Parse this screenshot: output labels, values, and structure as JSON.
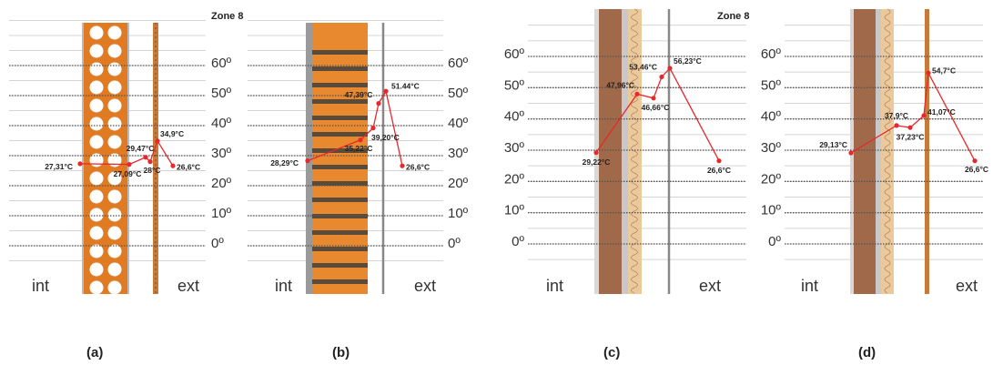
{
  "chart_data": [
    {
      "type": "line",
      "title": "Zone 8",
      "caption": "(a)",
      "inside_label": "int",
      "outside_label": "ext",
      "ylim": [
        0,
        60
      ],
      "yticks": [
        {
          "value": 0,
          "label": "0º"
        },
        {
          "value": 10,
          "label": "10º"
        },
        {
          "value": 20,
          "label": "20º"
        },
        {
          "value": 30,
          "label": "30º"
        },
        {
          "value": 40,
          "label": "40º"
        },
        {
          "value": 50,
          "label": "50º"
        },
        {
          "value": 60,
          "label": "60º"
        }
      ],
      "categories": [
        null,
        null,
        null,
        null,
        null,
        null
      ],
      "color": "#e8282b",
      "values": [
        27.31,
        27.09,
        29.47,
        28,
        34.9,
        26.6
      ],
      "value_labels": [
        "27,31°C",
        "27,09°C",
        "29,47°C",
        "28°C",
        "34,9°C",
        "26,6°C"
      ]
    },
    {
      "type": "line",
      "caption": "(b)",
      "inside_label": "int",
      "outside_label": "ext",
      "ylim": [
        0,
        60
      ],
      "yticks": [
        {
          "value": 0,
          "label": "0º"
        },
        {
          "value": 10,
          "label": "10º"
        },
        {
          "value": 20,
          "label": "20º"
        },
        {
          "value": 30,
          "label": "30º"
        },
        {
          "value": 40,
          "label": "40º"
        },
        {
          "value": 50,
          "label": "50º"
        },
        {
          "value": 60,
          "label": "60º"
        }
      ],
      "categories": [
        null,
        null,
        null,
        null,
        null,
        null
      ],
      "color": "#e8282b",
      "values": [
        28.29,
        35.22,
        39.2,
        47.39,
        51.44,
        26.6
      ],
      "value_labels": [
        "28,29°C",
        "35,22°C",
        "39,20°C",
        "47,39°C",
        "51.44°C",
        "26,6°C"
      ]
    },
    {
      "type": "line",
      "title": "Zone 8",
      "caption": "(c)",
      "inside_label": "int",
      "outside_label": "ext",
      "ylim": [
        0,
        60
      ],
      "yticks": [
        {
          "value": 0,
          "label": "0º"
        },
        {
          "value": 10,
          "label": "10º"
        },
        {
          "value": 20,
          "label": "20º"
        },
        {
          "value": 30,
          "label": "30º"
        },
        {
          "value": 40,
          "label": "40º"
        },
        {
          "value": 50,
          "label": "50º"
        },
        {
          "value": 60,
          "label": "60º"
        }
      ],
      "categories": [
        null,
        null,
        null,
        null,
        null,
        null
      ],
      "color": "#e8282b",
      "values": [
        29.22,
        47.96,
        46.66,
        53.46,
        56.23,
        26.6
      ],
      "value_labels": [
        "29,22°C",
        "47,96°C",
        "46,66°C",
        "53,46°C",
        "56,23°C",
        "26,6°C"
      ]
    },
    {
      "type": "line",
      "caption": "(d)",
      "inside_label": "int",
      "outside_label": "ext",
      "ylim": [
        0,
        60
      ],
      "yticks": [
        {
          "value": 0,
          "label": "0º"
        },
        {
          "value": 10,
          "label": "10º"
        },
        {
          "value": 20,
          "label": "20º"
        },
        {
          "value": 30,
          "label": "30º"
        },
        {
          "value": 40,
          "label": "40º"
        },
        {
          "value": 50,
          "label": "50º"
        },
        {
          "value": 60,
          "label": "60º"
        }
      ],
      "categories": [
        null,
        null,
        null,
        null,
        null,
        null
      ],
      "color": "#e8282b",
      "values": [
        29.13,
        37.9,
        37.23,
        41.07,
        54.7,
        26.6
      ],
      "value_labels": [
        "29,13°C",
        "37,9°C",
        "37,23°C",
        "41,07°C",
        "54,7°C",
        "26,6°C"
      ]
    }
  ]
}
